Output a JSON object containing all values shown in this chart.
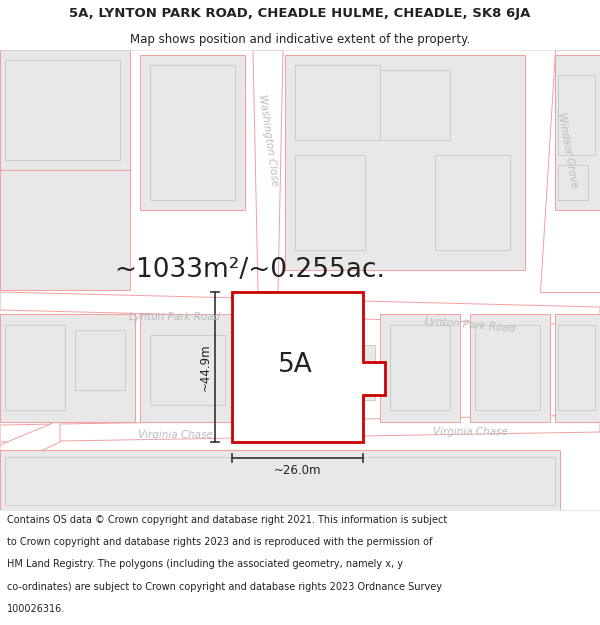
{
  "title_line1": "5A, LYNTON PARK ROAD, CHEADLE HULME, CHEADLE, SK8 6JA",
  "title_line2": "Map shows position and indicative extent of the property.",
  "area_label": "~1033m²/~0.255ac.",
  "property_label": "5A",
  "dim_height": "~44.9m",
  "dim_width": "~26.0m",
  "road_label_lynton_left": "Lynton Park Road",
  "road_label_lynton_right": "Lynton Park Road",
  "road_label_virginia_left": "Virginia Chase",
  "road_label_virginia_right": "Virginia Chase",
  "road_label_washington": "Washington Close",
  "road_label_windsor": "Windsor Grove",
  "footer_lines": [
    "Contains OS data © Crown copyright and database right 2021. This information is subject",
    "to Crown copyright and database rights 2023 and is reproduced with the permission of",
    "HM Land Registry. The polygons (including the associated geometry, namely x, y",
    "co-ordinates) are subject to Crown copyright and database rights 2023 Ordnance Survey",
    "100026316."
  ],
  "bg_color": "#ffffff",
  "building_fill": "#e8e8e8",
  "road_line_color": "#f0a0a0",
  "property_color": "#cc0000",
  "dim_color": "#333333",
  "text_dark": "#222222",
  "text_road": "#bbbbbb",
  "title_fontsize": 9.5,
  "subtitle_fontsize": 8.5,
  "area_fontsize": 19,
  "label_fontsize": 19,
  "dim_fontsize": 8.5,
  "road_fontsize": 7.5,
  "footer_fontsize": 7.0
}
